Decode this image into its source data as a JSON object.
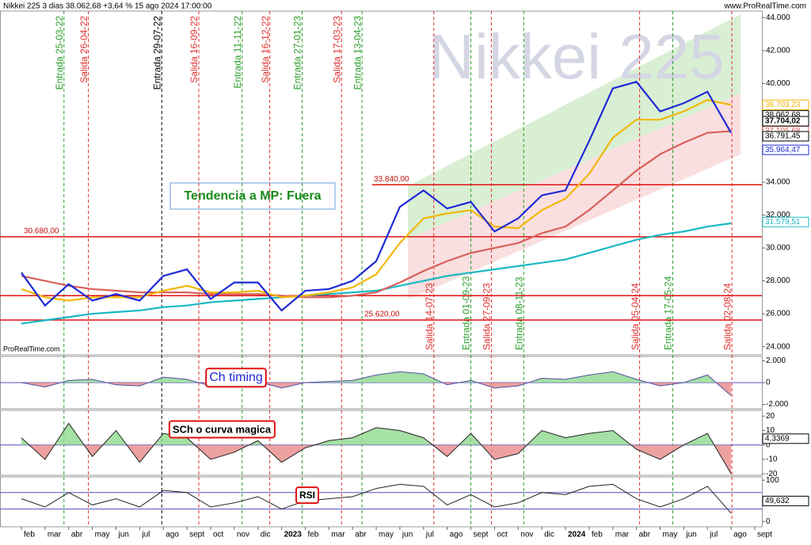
{
  "header": {
    "title": "Nikkei 225 3 dias 38.062,68 +3,64 % 15 ago 2024 17:00:00",
    "site": "www.ProRealTime.com",
    "watermark": "Nikkei 225",
    "brand": "ProRealTime.com"
  },
  "chart_data": [
    {
      "type": "line",
      "annotation": "Tendencia a MP: Fuera",
      "categories": [
        "feb",
        "mar",
        "abr",
        "may",
        "jun",
        "jul",
        "ago",
        "sept",
        "oct",
        "nov",
        "dic",
        "2023",
        "feb",
        "mar",
        "abr",
        "may",
        "jun",
        "jul",
        "ago",
        "sept",
        "oct",
        "nov",
        "dic",
        "2024",
        "feb",
        "mar",
        "abr",
        "may",
        "jun",
        "jul",
        "ago",
        "sept"
      ],
      "series": [
        {
          "color": "#1ab8c4",
          "values": [
            25400,
            25600,
            25800,
            26000,
            26100,
            26200,
            26400,
            26500,
            26700,
            26800,
            26900,
            27000,
            27100,
            27200,
            27300,
            27400,
            27700,
            28000,
            28300,
            28500,
            28700,
            28900,
            29100,
            29300,
            29700,
            30100,
            30500,
            30800,
            31000,
            31300,
            31500,
            null
          ]
        },
        {
          "color": "#d9605a",
          "values": [
            28300,
            28000,
            27700,
            27500,
            27400,
            27300,
            27300,
            27300,
            27200,
            27200,
            27200,
            27100,
            27000,
            27000,
            27100,
            27300,
            27900,
            28600,
            29200,
            29700,
            30000,
            30300,
            30900,
            31300,
            32300,
            33500,
            34700,
            35700,
            36400,
            37000,
            37100,
            null
          ]
        },
        {
          "color": "#f2b705",
          "values": [
            27500,
            27000,
            26800,
            27000,
            27000,
            27000,
            27400,
            27700,
            27300,
            27300,
            27400,
            27000,
            27100,
            27300,
            27600,
            28400,
            30300,
            31800,
            32100,
            32300,
            31300,
            31200,
            32300,
            33000,
            34500,
            36700,
            37800,
            37800,
            38300,
            39000,
            38700,
            null
          ]
        },
        {
          "color": "#1f2bd6",
          "values": [
            28500,
            26500,
            27800,
            26800,
            27200,
            26800,
            28300,
            28700,
            26900,
            27900,
            27900,
            26200,
            27400,
            27500,
            28000,
            29200,
            32500,
            33500,
            32400,
            32800,
            31000,
            31800,
            33200,
            33500,
            36500,
            39700,
            40100,
            38300,
            38800,
            39500,
            37000,
            null
          ]
        }
      ],
      "ylim": [
        23500,
        44400
      ],
      "yticks": [
        {
          "value": 24000,
          "label": "24.000"
        },
        {
          "value": 26000,
          "label": "26.000"
        },
        {
          "value": 28000,
          "label": "28.000"
        },
        {
          "value": 30000,
          "label": "30.000"
        },
        {
          "value": 32000,
          "label": "32.000"
        },
        {
          "value": 34000,
          "label": "34.000"
        },
        {
          "value": 36000,
          "label": "36.000"
        },
        {
          "value": 38000,
          "label": "38.000"
        },
        {
          "value": 40000,
          "label": "40.000"
        },
        {
          "value": 42000,
          "label": "42.000"
        },
        {
          "value": 44000,
          "label": "44.000"
        }
      ],
      "levels": [
        {
          "value": 33840,
          "label": "33.840,00"
        },
        {
          "value": 30680,
          "label": "30.680,00"
        },
        {
          "value": 27100
        },
        {
          "value": 25620,
          "label": "25.620,00"
        }
      ],
      "price_tags": [
        {
          "value": 38703.23,
          "label": "38.703,23",
          "color": "#f2b705"
        },
        {
          "value": 38062.68,
          "label": "38.062,68",
          "color": "#000000"
        },
        {
          "value": 37105.68,
          "label": "37.105,68",
          "color": "#d9605a"
        },
        {
          "value": 37704.02,
          "label": "37.704,02",
          "color": "#ffffff"
        },
        {
          "value": 36791.45,
          "label": "36.791,45",
          "color": "#000000"
        },
        {
          "value": 35964.47,
          "label": "35.964,47",
          "color": "#1f2bd6"
        },
        {
          "value": 31579.51,
          "label": "31.579,51",
          "color": "#1ab8c4"
        }
      ],
      "signals": [
        {
          "label": "Entrada 25-03-22",
          "color": "#2a9d2a"
        },
        {
          "label": "Salida 26-04-22",
          "color": "#e03030"
        },
        {
          "label": "Entrada 29-07-22",
          "color": "#000000"
        },
        {
          "label": "Salida 16-09-22",
          "color": "#e03030"
        },
        {
          "label": "Entrada 11-11-22",
          "color": "#2a9d2a"
        },
        {
          "label": "Salida 16-12-22",
          "color": "#e03030"
        },
        {
          "label": "Entrada 27-01-23",
          "color": "#2a9d2a"
        },
        {
          "label": "Salida 17-03-23",
          "color": "#e03030"
        },
        {
          "label": "Entrada 13-04-23",
          "color": "#2a9d2a"
        },
        {
          "label": "Salida 14-07-23",
          "color": "#e03030"
        },
        {
          "label": "Entrada 01-09-23",
          "color": "#2a9d2a"
        },
        {
          "label": "Salida 27-09-23",
          "color": "#e03030"
        },
        {
          "label": "Entrada 08-11-23",
          "color": "#2a9d2a"
        },
        {
          "label": "Salida 05-04-24",
          "color": "#e03030"
        },
        {
          "label": "Entrada 17-05-24",
          "color": "#2a9d2a"
        },
        {
          "label": "Salida 02-08-24",
          "color": "#e03030"
        }
      ]
    },
    {
      "type": "area",
      "title": "Ch timing",
      "ylim": [
        -2400,
        2400
      ],
      "yticks": [
        {
          "value": 2000,
          "label": "2.000"
        },
        0,
        {
          "value": -2000,
          "label": "-2.000"
        }
      ],
      "series": [
        {
          "color": "#5050a0",
          "values": [
            0,
            -400,
            200,
            300,
            -200,
            -300,
            500,
            300,
            -300,
            -200,
            100,
            -500,
            0,
            100,
            200,
            700,
            1000,
            800,
            -200,
            200,
            -500,
            -300,
            400,
            300,
            700,
            1000,
            300,
            -300,
            0,
            700,
            -1200,
            null
          ]
        }
      ]
    },
    {
      "type": "area",
      "title": "SCh o curva magica",
      "ylim": [
        -21,
        24
      ],
      "yticks": [
        20,
        10,
        0,
        -10,
        -20
      ],
      "price_tags": [
        {
          "value": 4.3369,
          "label": "4,3369",
          "color": "#000000"
        }
      ],
      "series": [
        {
          "color": "#222222",
          "values": [
            5,
            -10,
            15,
            -8,
            10,
            -12,
            8,
            5,
            -10,
            -5,
            3,
            -12,
            -2,
            3,
            5,
            12,
            10,
            5,
            -8,
            8,
            -10,
            -6,
            10,
            5,
            8,
            10,
            -3,
            -10,
            0,
            8,
            -20,
            null
          ]
        }
      ]
    },
    {
      "type": "line",
      "title": "RSI",
      "ylim": [
        -13,
        108
      ],
      "yticks": [
        100,
        0
      ],
      "hlines": [
        30,
        70
      ],
      "price_tags": [
        {
          "value": 49.632,
          "label": "49,632",
          "color": "#000000"
        }
      ],
      "series": [
        {
          "color": "#222222",
          "values": [
            55,
            35,
            70,
            40,
            55,
            35,
            75,
            70,
            35,
            45,
            60,
            30,
            50,
            55,
            60,
            80,
            90,
            85,
            40,
            65,
            35,
            45,
            70,
            65,
            85,
            90,
            55,
            35,
            55,
            85,
            20,
            null
          ]
        }
      ]
    }
  ]
}
